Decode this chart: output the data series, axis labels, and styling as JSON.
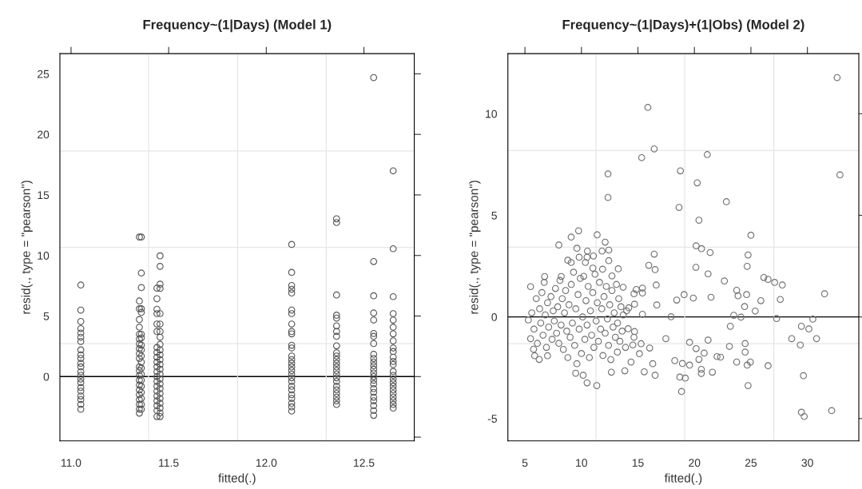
{
  "chart_data": [
    {
      "type": "scatter",
      "title": "Frequency~(1|Days) (Model 1)",
      "xlabel": "fitted(.)",
      "ylabel": "resid(., type = \"pearson\")",
      "marker": "circle",
      "xlim": [
        10.943,
        12.758
      ],
      "xticks": [
        {
          "value": 11,
          "label": "11.0"
        },
        11.5,
        {
          "value": 12,
          "label": "12.0"
        },
        12.5
      ],
      "ylim": [
        -5.31,
        26.67
      ],
      "yticks": [
        {
          "value": -5,
          "label": null
        },
        0,
        5,
        10,
        15,
        20,
        25
      ],
      "ref_lines": [
        {
          "axis": "y",
          "value": 0,
          "color": "#000000"
        },
        {
          "axis": "x",
          "value": 11.397,
          "color": "#e6e6e6"
        },
        {
          "axis": "x",
          "value": 11.853,
          "color": "#e6e6e6"
        },
        {
          "axis": "x",
          "value": 12.307,
          "color": "#e6e6e6"
        },
        {
          "axis": "y",
          "value": 2.71,
          "color": "#e6e6e6"
        },
        {
          "axis": "y",
          "value": 10.67,
          "color": "#e6e6e6"
        },
        {
          "axis": "y",
          "value": 18.64,
          "color": "#e6e6e6"
        }
      ],
      "series": [
        {
          "color": "#555555",
          "x": [
            11.05,
            11.05,
            11.05,
            11.05,
            11.05,
            11.05,
            11.05,
            11.05,
            11.05,
            11.05,
            11.05,
            11.05,
            11.05,
            11.05,
            11.05,
            11.05,
            11.05,
            11.05,
            11.05,
            11.05,
            11.05,
            11.05,
            11.35,
            11.35,
            11.35,
            11.35,
            11.35,
            11.35,
            11.35,
            11.35,
            11.35,
            11.35,
            11.35,
            11.35,
            11.35,
            11.35,
            11.35,
            11.35,
            11.35,
            11.35,
            11.35,
            11.35,
            11.35,
            11.35,
            11.36,
            11.36,
            11.36,
            11.36,
            11.36,
            11.36,
            11.36,
            11.36,
            11.36,
            11.36,
            11.36,
            11.36,
            11.36,
            11.36,
            11.36,
            11.36,
            11.36,
            11.36,
            11.36,
            11.44,
            11.44,
            11.44,
            11.44,
            11.44,
            11.44,
            11.44,
            11.44,
            11.44,
            11.44,
            11.44,
            11.44,
            11.44,
            11.44,
            11.44,
            11.44,
            11.44,
            11.44,
            11.44,
            11.44,
            11.44,
            11.456,
            11.456,
            11.456,
            11.456,
            11.456,
            11.456,
            11.456,
            11.456,
            11.456,
            11.456,
            11.456,
            11.456,
            11.456,
            11.456,
            11.456,
            11.456,
            11.456,
            11.456,
            11.456,
            11.456,
            11.456,
            11.456,
            11.456,
            11.456,
            12.13,
            12.13,
            12.13,
            12.13,
            12.13,
            12.13,
            12.13,
            12.13,
            12.13,
            12.13,
            12.13,
            12.13,
            12.13,
            12.13,
            12.13,
            12.13,
            12.13,
            12.13,
            12.13,
            12.13,
            12.13,
            12.13,
            12.13,
            12.13,
            12.13,
            12.13,
            12.13,
            12.36,
            12.36,
            12.36,
            12.36,
            12.36,
            12.36,
            12.36,
            12.36,
            12.36,
            12.36,
            12.36,
            12.36,
            12.36,
            12.36,
            12.36,
            12.36,
            12.36,
            12.36,
            12.36,
            12.36,
            12.36,
            12.36,
            12.36,
            12.36,
            12.55,
            12.55,
            12.55,
            12.55,
            12.55,
            12.55,
            12.55,
            12.55,
            12.55,
            12.55,
            12.55,
            12.55,
            12.55,
            12.55,
            12.55,
            12.55,
            12.55,
            12.55,
            12.55,
            12.55,
            12.55,
            12.55,
            12.55,
            12.55,
            12.65,
            12.65,
            12.65,
            12.65,
            12.65,
            12.65,
            12.65,
            12.65,
            12.65,
            12.65,
            12.65,
            12.65,
            12.65,
            12.65,
            12.65,
            12.65,
            12.65,
            12.65,
            12.65,
            12.65,
            12.65,
            12.65,
            12.65,
            12.65
          ],
          "values": [
            7.56,
            5.49,
            4.55,
            3.96,
            3.6,
            3.25,
            2.9,
            2.2,
            1.8,
            1.5,
            1.1,
            0.8,
            0.4,
            0.1,
            -0.2,
            -0.5,
            -0.9,
            -1.2,
            -1.6,
            -1.9,
            -2.3,
            -2.7,
            11.52,
            6.24,
            5.6,
            4.71,
            4.08,
            3.5,
            3.1,
            2.7,
            2.3,
            1.9,
            1.5,
            0.8,
            0.5,
            0.1,
            -0.3,
            -0.7,
            -1.1,
            -1.5,
            -1.9,
            -2.3,
            -2.7,
            -3.02,
            11.52,
            8.55,
            7.35,
            5.6,
            5.3,
            3.5,
            3.2,
            2.6,
            2.2,
            1.7,
            1.2,
            0.7,
            0.2,
            -0.3,
            -0.8,
            -1.3,
            -1.8,
            -2.3,
            -2.7,
            7.3,
            6.43,
            5.56,
            5.2,
            4.34,
            3.72,
            2.4,
            2.0,
            1.6,
            1.2,
            0.8,
            0.4,
            0.0,
            -0.4,
            -0.8,
            -1.2,
            -1.6,
            -2.0,
            -2.4,
            -2.8,
            -3.3,
            9.97,
            9.1,
            7.63,
            7.28,
            5.2,
            4.34,
            3.72,
            3.25,
            2.66,
            2.2,
            1.8,
            1.4,
            1.0,
            0.6,
            0.2,
            -0.2,
            -0.6,
            -1.0,
            -1.4,
            -1.8,
            -2.2,
            -2.6,
            -3.0,
            -3.3,
            10.91,
            8.6,
            7.52,
            7.21,
            6.9,
            5.49,
            5.2,
            4.34,
            3.72,
            3.53,
            2.59,
            2.36,
            1.7,
            1.4,
            1.1,
            0.8,
            0.5,
            0.2,
            -0.1,
            -0.4,
            -0.8,
            -1.1,
            -1.5,
            -1.8,
            -2.2,
            -2.5,
            -2.85,
            13.03,
            12.72,
            6.74,
            5.07,
            4.83,
            4.19,
            3.72,
            3.32,
            2.54,
            1.96,
            1.7,
            1.4,
            1.1,
            0.8,
            0.5,
            0.2,
            -0.1,
            -0.4,
            -0.8,
            -1.1,
            -1.4,
            -1.7,
            -2.0,
            -2.3,
            24.69,
            9.5,
            6.67,
            5.25,
            4.67,
            3.56,
            3.32,
            2.73,
            1.84,
            1.5,
            1.2,
            0.9,
            0.6,
            0.3,
            0.0,
            -0.3,
            -0.6,
            -1.0,
            -1.3,
            -1.7,
            -2.0,
            -2.4,
            -2.8,
            -3.2,
            16.99,
            10.56,
            6.6,
            5.2,
            4.67,
            4.08,
            3.53,
            2.95,
            2.36,
            2.07,
            1.6,
            1.25,
            1.0,
            0.42,
            0.1,
            -0.2,
            -0.5,
            -0.8,
            -1.1,
            -1.4,
            -1.7,
            -2.0,
            -2.3,
            -2.6
          ]
        }
      ]
    },
    {
      "type": "scatter",
      "title": "Frequency~(1|Days)+(1|Obs) (Model 2)",
      "xlabel": "fitted(.)",
      "ylabel": "resid(., type = \"pearson\")",
      "marker": "circle",
      "xlim": [
        3.49,
        34.55
      ],
      "xticks": [
        5,
        10,
        15,
        20,
        25,
        30
      ],
      "ylim": [
        -6.1,
        12.96
      ],
      "yticks": [
        -5,
        0,
        5,
        10
      ],
      "ref_lines": [
        {
          "axis": "y",
          "value": 0,
          "color": "#000000"
        },
        {
          "axis": "x",
          "value": 11.29,
          "color": "#e6e6e6"
        },
        {
          "axis": "x",
          "value": 19.14,
          "color": "#e6e6e6"
        },
        {
          "axis": "x",
          "value": 27.03,
          "color": "#e6e6e6"
        },
        {
          "axis": "y",
          "value": -1.32,
          "color": "#e6e6e6"
        },
        {
          "axis": "y",
          "value": 3.43,
          "color": "#e6e6e6"
        },
        {
          "axis": "y",
          "value": 8.19,
          "color": "#e6e6e6"
        }
      ],
      "series": [
        {
          "color": "#707070",
          "x": [
            15.88,
            32.63,
            32.88,
            16.44,
            15.33,
            21.14,
            12.35,
            12.35,
            18.76,
            20.25,
            18.64,
            22.83,
            20.4,
            25.0,
            9.75,
            11.39,
            9.09,
            8.0,
            12.1,
            16.44,
            24.75,
            20.15,
            20.63,
            21.39,
            15.96,
            16.52,
            20.13,
            21.21,
            24.67,
            16.62,
            22.65,
            26.14,
            26.52,
            27.1,
            27.78,
            31.52,
            23.74,
            23.86,
            24.62,
            19.09,
            19.9,
            21.47,
            18.43,
            25.88,
            27.6,
            16.67,
            24.44,
            25.38,
            15.4,
            17.93,
            23.48,
            24.12,
            30.48,
            27.27,
            23.18,
            29.47,
            30.13,
            21.21,
            28.61,
            30.81,
            29.37,
            17.47,
            19.57,
            24.49,
            23.1,
            24.49,
            22.0,
            22.31,
            20.86,
            20.15,
            18.26,
            18.94,
            19.57,
            23.74,
            24.95,
            24.67,
            26.52,
            20.4,
            20.61,
            20.61,
            21.59,
            18.71,
            19.19,
            18.86,
            24.75,
            29.65,
            29.47,
            29.72,
            32.15,
            16.31,
            15.56,
            16.52,
            13.84,
            12.65,
            10.5,
            11.36,
            9.49,
            10.15,
            14.39,
            15.13,
            16.04,
            15.28,
            14.55,
            13.18,
            14.65,
            14.7,
            14.14,
            14.7,
            14.19,
            14.65,
            14.85,
            15.4,
            15.4,
            13.69,
            13.26,
            12.7,
            12.42,
            12.42,
            11.82,
            11.06,
            10.53,
            10.5,
            10.35,
            9.6,
            9.8,
            8.79,
            9.09,
            11.01,
            11.87,
            6.74,
            8.21,
            5.5,
            5.86,
            6.26,
            7.0,
            5.76,
            5.5,
            5.3,
            5.6,
            5.8,
            6.0,
            6.1,
            6.3,
            6.4,
            6.5,
            6.6,
            6.7,
            6.8,
            6.9,
            7.0,
            7.1,
            7.3,
            7.4,
            7.5,
            7.6,
            7.7,
            7.8,
            7.9,
            8.0,
            8.1,
            8.2,
            8.3,
            8.4,
            8.5,
            8.6,
            8.7,
            8.8,
            8.9,
            9.0,
            9.1,
            9.2,
            9.3,
            9.4,
            9.5,
            9.6,
            9.7,
            9.8,
            9.9,
            10.0,
            10.1,
            10.2,
            10.3,
            10.4,
            10.5,
            10.6,
            10.7,
            10.8,
            10.9,
            11.0,
            11.1,
            11.2,
            11.3,
            11.4,
            11.5,
            11.6,
            11.7,
            11.8,
            11.9,
            12.0,
            12.1,
            12.2,
            12.3,
            12.4,
            12.5,
            12.6,
            12.7,
            12.8,
            12.9,
            13.0,
            13.1,
            13.2,
            13.3,
            13.4,
            13.5,
            13.6,
            13.7,
            13.9,
            14.0
          ],
          "values": [
            10.31,
            11.78,
            6.99,
            8.27,
            7.84,
            7.99,
            7.04,
            5.88,
            7.19,
            6.6,
            5.39,
            5.67,
            4.76,
            4.02,
            4.24,
            4.04,
            3.93,
            3.54,
            3.68,
            3.09,
            3.05,
            3.5,
            3.36,
            3.17,
            2.54,
            2.33,
            2.44,
            2.12,
            2.49,
            1.57,
            1.77,
            1.94,
            1.85,
            1.7,
            1.57,
            1.14,
            1.31,
            1.04,
            1.1,
            1.1,
            0.93,
            0.97,
            0.83,
            0.8,
            0.86,
            0.59,
            0.51,
            0.29,
            0.13,
            0.01,
            0.08,
            -0.01,
            -0.11,
            -0.08,
            -0.46,
            -0.46,
            -0.59,
            -1.14,
            -1.07,
            -1.07,
            -1.38,
            -1.07,
            -1.25,
            -1.31,
            -1.45,
            -1.73,
            -1.95,
            -1.98,
            -1.78,
            -1.56,
            -2.15,
            -2.29,
            -2.37,
            -2.22,
            -2.22,
            -2.37,
            -2.4,
            -2.09,
            -2.58,
            -2.78,
            -2.72,
            -2.96,
            -3.01,
            -3.67,
            -3.38,
            -2.89,
            -4.69,
            -4.9,
            -4.61,
            -2.3,
            -2.7,
            -2.87,
            -2.65,
            -2.72,
            -3.24,
            -3.38,
            -2.77,
            -2.87,
            -2.22,
            -1.81,
            -1.53,
            -1.32,
            -1.38,
            -1.73,
            -1.0,
            -0.72,
            -0.58,
            0.63,
            0.45,
            1.14,
            1.35,
            1.42,
            1.18,
            1.46,
            2.37,
            2.02,
            2.77,
            3.29,
            3.24,
            3.0,
            3.24,
            2.94,
            2.68,
            3.38,
            2.94,
            2.79,
            2.68,
            2.4,
            2.35,
            1.99,
            1.99,
            1.49,
            -1.91,
            -2.09,
            -1.91,
            -1.59,
            -1.07,
            -0.15,
            0.2,
            -0.6,
            0.9,
            -1.3,
            0.4,
            -0.3,
            1.2,
            -0.9,
            1.7,
            0.1,
            -1.5,
            0.7,
            -0.5,
            1.0,
            -1.1,
            0.3,
            -0.2,
            1.4,
            -0.8,
            0.5,
            -1.3,
            1.8,
            -0.4,
            0.9,
            -1.6,
            0.2,
            1.3,
            -0.7,
            -2.0,
            0.6,
            -1.0,
            1.6,
            -0.3,
            2.2,
            -1.4,
            0.4,
            -2.3,
            1.1,
            -0.6,
            1.9,
            -1.8,
            0.0,
            2.0,
            -1.1,
            0.8,
            -0.4,
            1.5,
            -2.0,
            0.3,
            -0.9,
            1.2,
            -1.5,
            2.1,
            -0.2,
            0.7,
            -1.2,
            1.7,
            -0.6,
            0.4,
            -1.9,
            1.0,
            -0.8,
            1.5,
            -0.1,
            -1.4,
            0.6,
            -2.1,
            1.3,
            -0.5,
            0.2,
            -1.0,
            1.6,
            -0.3,
            0.9,
            -1.2,
            0.5,
            -0.7,
            0.1,
            -1.5,
            0.3
          ]
        }
      ]
    }
  ]
}
